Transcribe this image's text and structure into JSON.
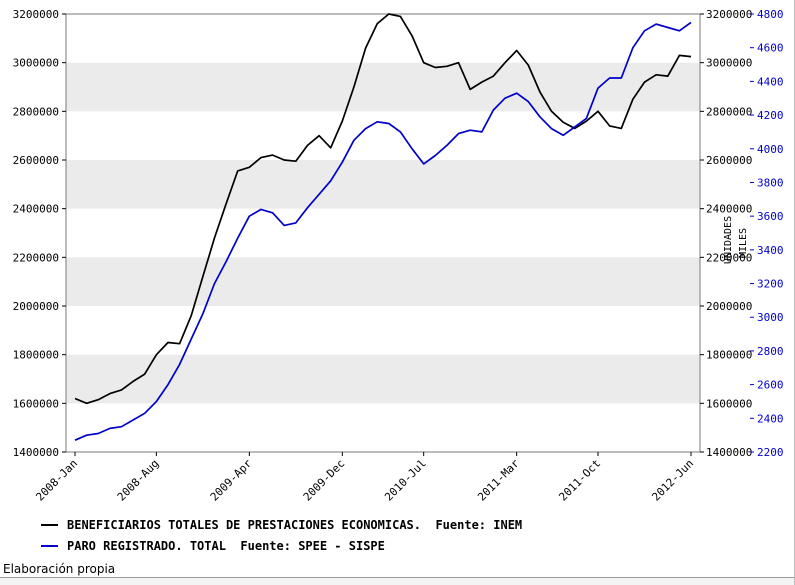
{
  "chart_data": {
    "type": "line",
    "title": "",
    "x_unit": "month",
    "x_start_label": "2008-Jan",
    "x_end_label": "2012-Jun",
    "x_tick_labels": [
      "2008-Jan",
      "2008-Aug",
      "2009-Apr",
      "2009-Dec",
      "2010-Jul",
      "2011-Mar",
      "2011-Oct",
      "2012-Jun"
    ],
    "x_tick_indices": [
      0,
      7,
      15,
      23,
      30,
      38,
      45,
      53
    ],
    "left_axis": {
      "min": 1400000,
      "max": 3200000,
      "step": 200000,
      "ticks": [
        1400000,
        1600000,
        1800000,
        2000000,
        2200000,
        2400000,
        2600000,
        2800000,
        3000000,
        3200000
      ],
      "title": "UNIDADES"
    },
    "right_axis": {
      "min": 2200,
      "max": 4800,
      "step": 200,
      "ticks": [
        2200,
        2400,
        2600,
        2800,
        3000,
        3200,
        3400,
        3600,
        3800,
        4000,
        4200,
        4400,
        4600,
        4800
      ],
      "title": "MILES",
      "color": "#0000cd"
    },
    "band_color": "#ebebeb",
    "legend_position": "bottom-left",
    "series": [
      {
        "name": "BENEFICIARIOS TOTALES DE PRESTACIONES ECONOMICAS.  Fuente: INEM",
        "color": "#000000",
        "axis": "left",
        "values": [
          1620000,
          1600000,
          1615000,
          1640000,
          1655000,
          1690000,
          1720000,
          1800000,
          1850000,
          1845000,
          1960000,
          2120000,
          2280000,
          2420000,
          2555000,
          2570000,
          2610000,
          2620000,
          2600000,
          2595000,
          2660000,
          2700000,
          2650000,
          2760000,
          2900000,
          3060000,
          3160000,
          3200000,
          3190000,
          3110000,
          3000000,
          2980000,
          2985000,
          3000000,
          2890000,
          2920000,
          2945000,
          3000000,
          3050000,
          2990000,
          2880000,
          2800000,
          2755000,
          2730000,
          2760000,
          2800000,
          2740000,
          2730000,
          2850000,
          2920000,
          2950000,
          2945000,
          3030000,
          3025000
        ]
      },
      {
        "name": "PARO REGISTRADO. TOTAL  Fuente: SPEE - SISPE",
        "color": "#0000cd",
        "axis": "right",
        "values": [
          2270,
          2300,
          2310,
          2340,
          2350,
          2390,
          2430,
          2500,
          2600,
          2720,
          2870,
          3020,
          3200,
          3330,
          3470,
          3600,
          3640,
          3620,
          3545,
          3560,
          3650,
          3730,
          3810,
          3920,
          4050,
          4120,
          4160,
          4150,
          4100,
          4000,
          3910,
          3960,
          4020,
          4090,
          4110,
          4100,
          4230,
          4300,
          4330,
          4280,
          4190,
          4120,
          4080,
          4130,
          4180,
          4360,
          4420,
          4420,
          4600,
          4700,
          4740,
          4720,
          4700,
          4750
        ]
      }
    ]
  },
  "footer": {
    "attribution": "Elaboración propia"
  }
}
